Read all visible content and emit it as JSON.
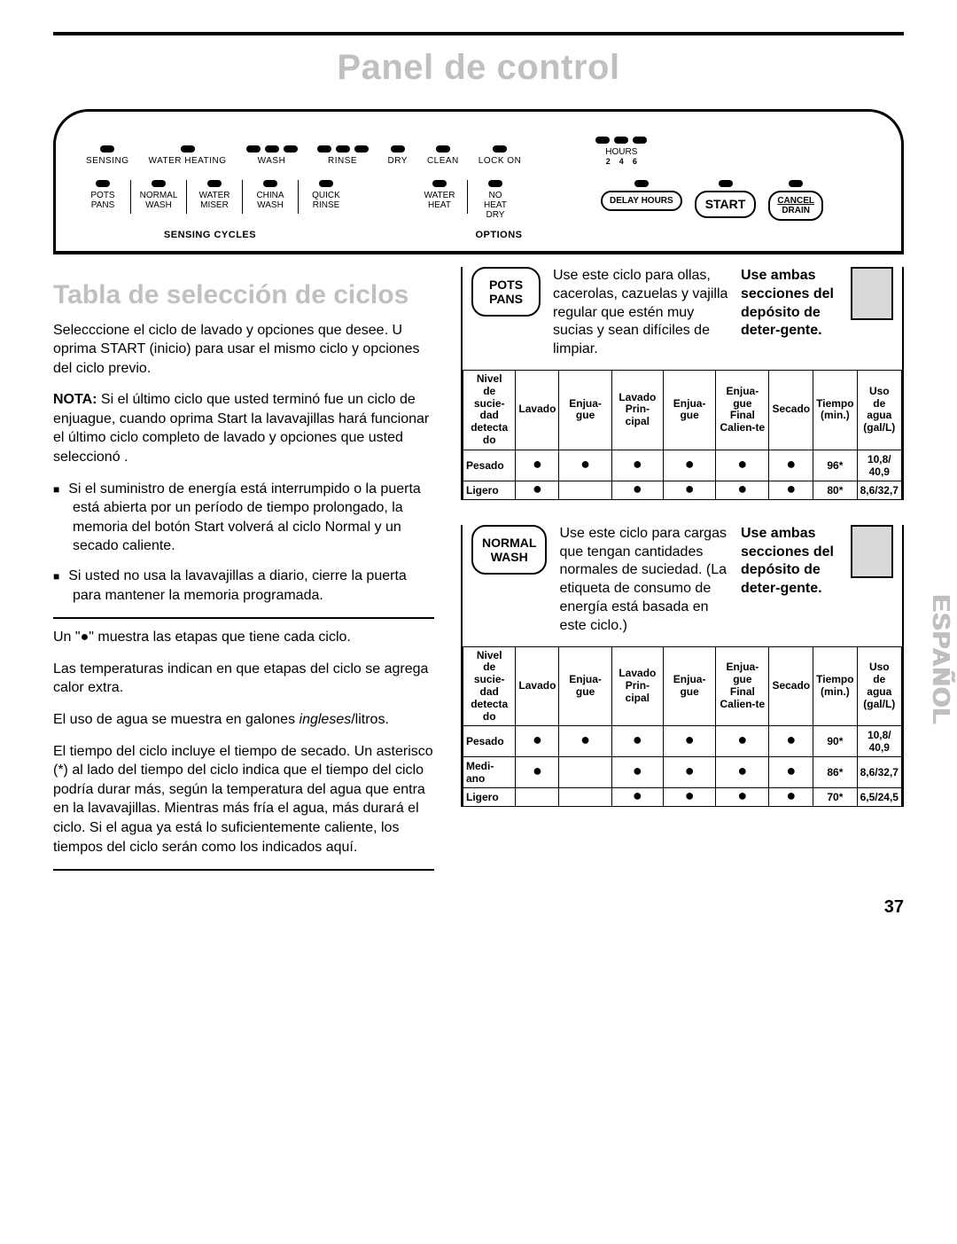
{
  "page": {
    "title": "Panel de control",
    "section_heading": "Tabla de selección de ciclos",
    "page_number": "37",
    "side_tab": "ESPAÑOL"
  },
  "panel": {
    "indicators": [
      {
        "label": "SENSING",
        "pills": 1
      },
      {
        "label": "WATER HEATING",
        "pills": 1
      },
      {
        "label": "WASH",
        "pills": 3
      },
      {
        "label": "RINSE",
        "pills": 3
      },
      {
        "label": "DRY",
        "pills": 1
      },
      {
        "label": "CLEAN",
        "pills": 1
      },
      {
        "label": "LOCK ON",
        "pills": 1
      }
    ],
    "hours_label": "HOURS",
    "hours_values": [
      "2",
      "4",
      "6"
    ],
    "cycles_group_label": "SENSING CYCLES",
    "cycles": [
      "POTS PANS",
      "NORMAL WASH",
      "WATER MISER",
      "CHINA WASH",
      "QUICK RINSE"
    ],
    "options_group_label": "OPTIONS",
    "options": [
      "WATER HEAT",
      "NO HEAT DRY"
    ],
    "delay_label": "DELAY HOURS",
    "start_label": "START",
    "cancel_label_top": "CANCEL",
    "cancel_label_bottom": "DRAIN"
  },
  "left": {
    "intro": "Selecccione el ciclo de lavado y opciones que desee.  U oprima START (inicio) para usar el mismo ciclo y opciones del ciclo previo.",
    "nota_label": "NOTA:",
    "nota": " Si el último ciclo que usted terminó fue un ciclo de enjuague, cuando oprima Start la lavavajillas hará funcionar el último ciclo completo de lavado y opciones que usted seleccionó .",
    "bullets": [
      "Si el suministro de energía está interrumpido o la puerta está abierta por un período de tiempo prolongado, la memoria del botón Start volverá al ciclo Normal y un secado caliente.",
      "Si usted no usa la lavavajillas a diario, cierre la puerta para mantener la memoria programada."
    ],
    "legend_dot": "Un \"●\" muestra las etapas que tiene cada ciclo.",
    "legend_temp": "Las temperaturas indican en que etapas del ciclo se agrega calor extra.",
    "legend_water": "El uso de agua se muestra en galones ingleses/litros.",
    "legend_time": "El tiempo del ciclo incluye el tiempo de secado. Un asterisco (*) al lado del tiempo del ciclo indica que el tiempo del ciclo podría durar más, según la temperatura del agua que entra en la lavavajillas. Mientras más fría el agua, más durará el ciclo. Si el agua ya está lo suficientemente caliente, los tiempos del ciclo serán como los indicados aquí."
  },
  "table_headers": [
    "Nivel de sucie-dad detecta do",
    "Lavado",
    "Enjua-gue",
    "Lavado Prin-cipal",
    "Enjua-gue",
    "Enjua-gue Final Calien-te",
    "Secado",
    "Tiempo (min.)",
    "Uso de agua (gal/L)"
  ],
  "det_text": "Use ambas secciones del depósito de deter-gente.",
  "pots_pans": {
    "name": "POTS PANS",
    "desc": "Use este ciclo para ollas, cacerolas, cazuelas y vajilla regular que estén muy sucias y sean difíciles de limpiar.",
    "rows": [
      {
        "label": "Pesado",
        "d": [
          true,
          true,
          true,
          true,
          true,
          true
        ],
        "time": "96*",
        "water": "10,8/ 40,9"
      },
      {
        "label": "Ligero",
        "d": [
          true,
          false,
          true,
          true,
          true,
          true
        ],
        "time": "80*",
        "water": "8,6/32,7"
      }
    ]
  },
  "normal_wash": {
    "name": "NORMAL WASH",
    "desc": "Use este ciclo para cargas que tengan cantidades normales de suciedad. (La etiqueta de consumo de energía está basada en este ciclo.)",
    "rows": [
      {
        "label": "Pesado",
        "d": [
          true,
          true,
          true,
          true,
          true,
          true
        ],
        "time": "90*",
        "water": "10,8/ 40,9"
      },
      {
        "label": "Medi-ano",
        "d": [
          true,
          false,
          true,
          true,
          true,
          true
        ],
        "time": "86*",
        "water": "8,6/32,7"
      },
      {
        "label": "Ligero",
        "d": [
          false,
          false,
          true,
          true,
          true,
          true
        ],
        "time": "70*",
        "water": "6,5/24,5"
      }
    ]
  }
}
